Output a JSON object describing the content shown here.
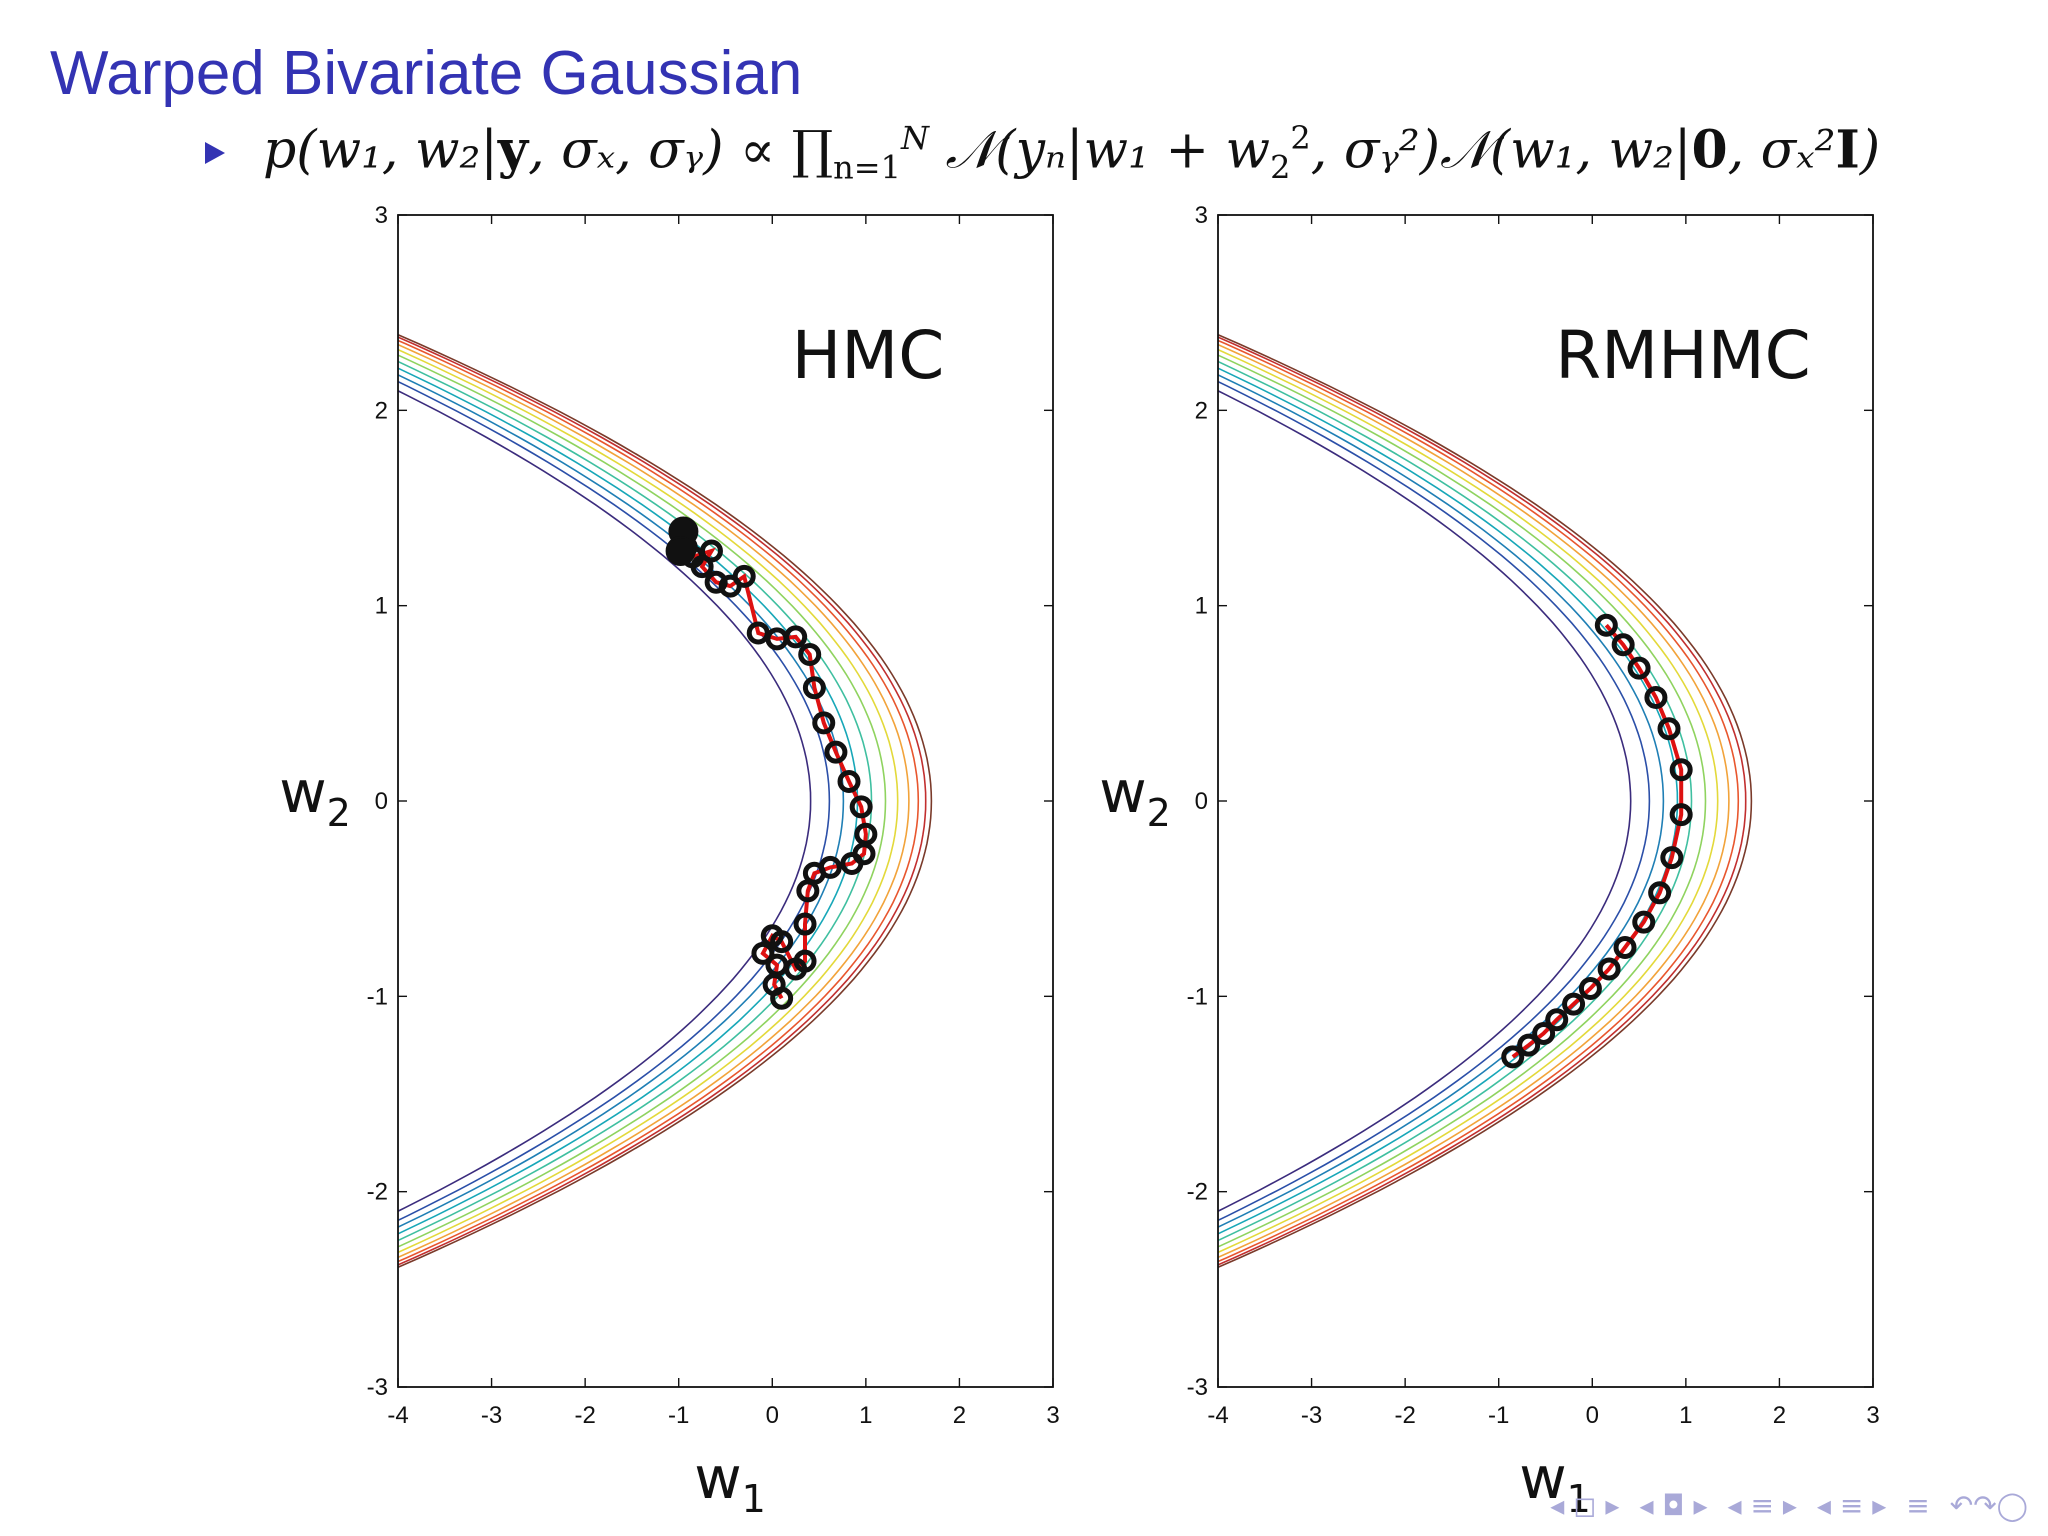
{
  "slide": {
    "title": "Warped Bivariate Gaussian",
    "formula": {
      "lhs": "p(w₁, w₂|",
      "y": "y",
      "cond": ", σₓ, σᵧ) ∝ ∏",
      "prod_sub": "n=1",
      "prod_sup": "N",
      "term1": " 𝒩(yₙ|w₁ + w",
      "sq_sub": "2",
      "sq_sup": "2",
      "term1b": ", σᵧ²)𝒩(w₁, w₂|",
      "zero": "0",
      "term2": ", σₓ²",
      "identity": "I",
      "close": ")"
    }
  },
  "colors": {
    "title": "#3333b3",
    "trajectory": "#dd1111",
    "markers": "#111111",
    "nav": "#a9a9d8",
    "contours": [
      "#3b2c7d",
      "#2b4fa8",
      "#1f7fb5",
      "#17a7b8",
      "#3fbfa0",
      "#8fd35f",
      "#e3d93a",
      "#f2a33a",
      "#e8562e",
      "#c22f2f",
      "#7a3a2a"
    ]
  },
  "chart_data": [
    {
      "type": "scatter",
      "panel_label": "HMC",
      "xlabel": "w",
      "xlabel_sub": "1",
      "ylabel": "w",
      "ylabel_sub": "2",
      "xlim": [
        -4,
        3
      ],
      "ylim": [
        -3,
        3
      ],
      "xticks": [
        -4,
        -3,
        -2,
        -1,
        0,
        1,
        2,
        3
      ],
      "yticks": [
        -3,
        -2,
        -1,
        0,
        1,
        2,
        3
      ],
      "grid": false,
      "contour_model": "w1 = -w2^2 + c",
      "contour_levels": [
        -0.55,
        -0.35,
        -0.2,
        -0.05,
        0.1,
        0.25,
        0.38,
        0.5,
        0.6,
        0.68,
        0.74
      ],
      "samples": [
        {
          "w1": -0.95,
          "w2": 1.38
        },
        {
          "w1": -0.92,
          "w2": 1.3
        },
        {
          "w1": -0.98,
          "w2": 1.28
        },
        {
          "w1": -0.85,
          "w2": 1.25
        },
        {
          "w1": -0.65,
          "w2": 1.28
        },
        {
          "w1": -0.75,
          "w2": 1.2
        },
        {
          "w1": -0.6,
          "w2": 1.12
        },
        {
          "w1": -0.45,
          "w2": 1.1
        },
        {
          "w1": -0.3,
          "w2": 1.15
        },
        {
          "w1": -0.15,
          "w2": 0.86
        },
        {
          "w1": 0.05,
          "w2": 0.83
        },
        {
          "w1": 0.25,
          "w2": 0.84
        },
        {
          "w1": 0.4,
          "w2": 0.75
        },
        {
          "w1": 0.45,
          "w2": 0.58
        },
        {
          "w1": 0.55,
          "w2": 0.4
        },
        {
          "w1": 0.68,
          "w2": 0.25
        },
        {
          "w1": 0.82,
          "w2": 0.1
        },
        {
          "w1": 0.95,
          "w2": -0.03
        },
        {
          "w1": 1.0,
          "w2": -0.17
        },
        {
          "w1": 0.98,
          "w2": -0.27
        },
        {
          "w1": 0.85,
          "w2": -0.32
        },
        {
          "w1": 0.62,
          "w2": -0.34
        },
        {
          "w1": 0.45,
          "w2": -0.37
        },
        {
          "w1": 0.38,
          "w2": -0.46
        },
        {
          "w1": 0.35,
          "w2": -0.63
        },
        {
          "w1": 0.35,
          "w2": -0.82
        },
        {
          "w1": 0.25,
          "w2": -0.86
        },
        {
          "w1": 0.1,
          "w2": -0.72
        },
        {
          "w1": 0.0,
          "w2": -0.69
        },
        {
          "w1": -0.1,
          "w2": -0.78
        },
        {
          "w1": 0.05,
          "w2": -0.84
        },
        {
          "w1": 0.02,
          "w2": -0.94
        },
        {
          "w1": 0.1,
          "w2": -1.01
        }
      ],
      "large_samples": [
        {
          "w1": -0.95,
          "w2": 1.38
        },
        {
          "w1": -0.98,
          "w2": 1.28
        }
      ]
    },
    {
      "type": "scatter",
      "panel_label": "RMHMC",
      "xlabel": "w",
      "xlabel_sub": "1",
      "ylabel": "w",
      "ylabel_sub": "2",
      "xlim": [
        -4,
        3
      ],
      "ylim": [
        -3,
        3
      ],
      "xticks": [
        -4,
        -3,
        -2,
        -1,
        0,
        1,
        2,
        3
      ],
      "yticks": [
        -3,
        -2,
        -1,
        0,
        1,
        2,
        3
      ],
      "grid": false,
      "contour_model": "w1 = -w2^2 + c",
      "contour_levels": [
        -0.55,
        -0.35,
        -0.2,
        -0.05,
        0.1,
        0.25,
        0.38,
        0.5,
        0.6,
        0.68,
        0.74
      ],
      "samples": [
        {
          "w1": 0.15,
          "w2": 0.9
        },
        {
          "w1": 0.33,
          "w2": 0.8
        },
        {
          "w1": 0.5,
          "w2": 0.68
        },
        {
          "w1": 0.68,
          "w2": 0.53
        },
        {
          "w1": 0.82,
          "w2": 0.37
        },
        {
          "w1": 0.95,
          "w2": 0.16
        },
        {
          "w1": 0.95,
          "w2": -0.07
        },
        {
          "w1": 0.85,
          "w2": -0.29
        },
        {
          "w1": 0.72,
          "w2": -0.47
        },
        {
          "w1": 0.55,
          "w2": -0.62
        },
        {
          "w1": 0.35,
          "w2": -0.75
        },
        {
          "w1": 0.18,
          "w2": -0.86
        },
        {
          "w1": -0.02,
          "w2": -0.96
        },
        {
          "w1": -0.2,
          "w2": -1.04
        },
        {
          "w1": -0.38,
          "w2": -1.12
        },
        {
          "w1": -0.52,
          "w2": -1.19
        },
        {
          "w1": -0.68,
          "w2": -1.25
        },
        {
          "w1": -0.85,
          "w2": -1.31
        }
      ],
      "large_samples": []
    }
  ],
  "nav": {
    "icons": [
      "◂ ◻ ▸",
      "◂ ◘ ▸",
      "◂ ≡ ▸",
      "◂ ≡ ▸",
      "≡",
      "↶↷◯"
    ]
  }
}
